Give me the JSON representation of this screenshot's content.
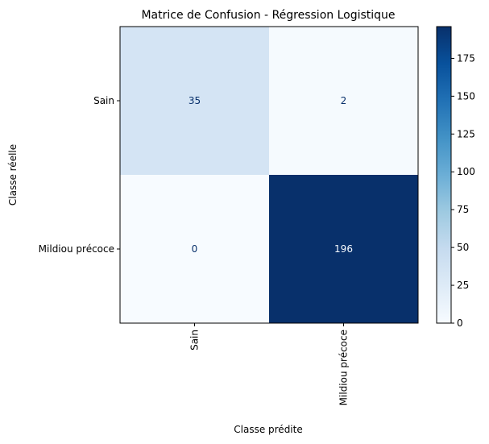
{
  "chart_data": {
    "type": "heatmap",
    "title": "Matrice de Confusion - Régression Logistique",
    "xlabel": "Classe prédite",
    "ylabel": "Classe réelle",
    "x_categories": [
      "Sain",
      "Mildiou précoce"
    ],
    "y_categories": [
      "Sain",
      "Mildiou précoce"
    ],
    "values": [
      [
        35,
        2
      ],
      [
        0,
        196
      ]
    ],
    "colormap": "Blues",
    "colorbar": {
      "min": 0,
      "max": 196,
      "ticks": [
        0,
        25,
        50,
        75,
        100,
        125,
        150,
        175
      ]
    },
    "grid": false
  },
  "colors": {
    "cmap_low": "#f7fbff",
    "cmap_high": "#08306b",
    "text_dark": "#08306b",
    "text_light": "#f7fbff"
  }
}
